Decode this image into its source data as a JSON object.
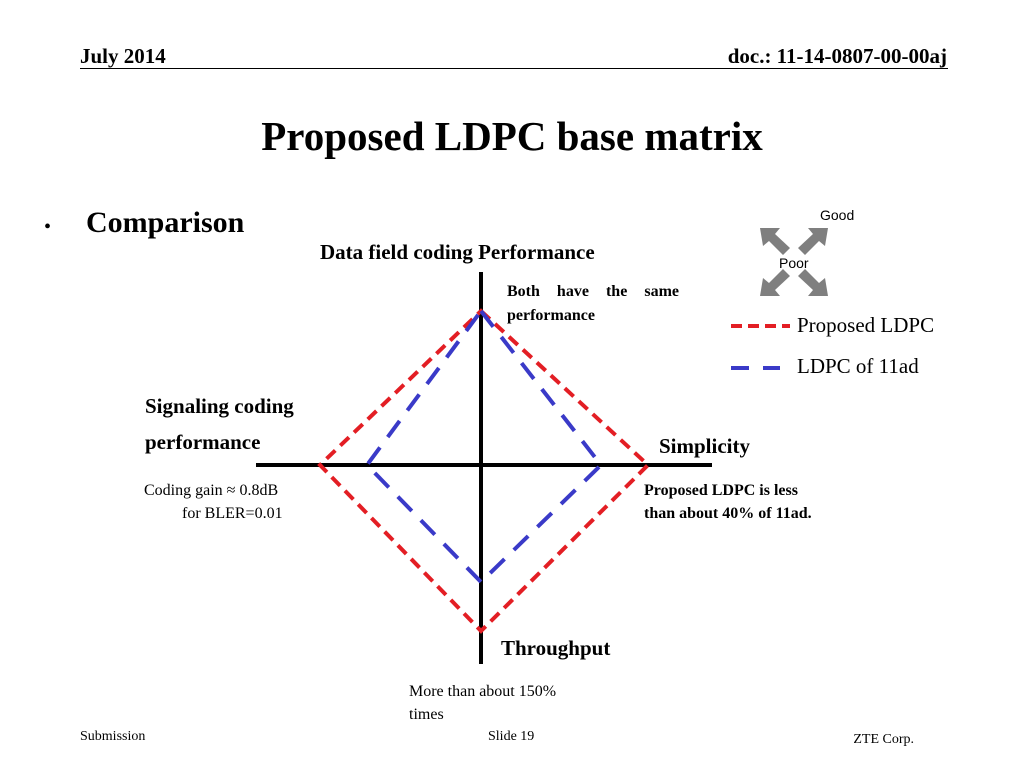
{
  "header": {
    "date": "July 2014",
    "doc_id": "doc.: 11-14-0807-00-00aj"
  },
  "slide": {
    "title": "Proposed LDPC base matrix",
    "bullet": "•",
    "heading": "Comparison"
  },
  "diagram": {
    "axes": {
      "top": "Data field  coding Performance",
      "left_line1": "Signaling coding",
      "left_line2": "performance",
      "right": "Simplicity",
      "bottom": "Throughput"
    },
    "notes": {
      "top": "Both have the same performance",
      "left_line1": "Coding gain  ≈  0.8dB",
      "left_line2": "for BLER=0.01",
      "right_line1": "Proposed LDPC is less",
      "right_line2": "than about 40% of 11ad.",
      "bottom_line1": "More than about 150%",
      "bottom_line2": "times"
    },
    "series": [
      {
        "name": "Proposed LDPC",
        "color": "#e31e24"
      },
      {
        "name": "LDPC of 11ad",
        "color": "#3a3ac8"
      }
    ],
    "indicator": {
      "good": "Good",
      "poor": "Poor",
      "arrow_color": "#7f7f7f",
      "icon": "expand-arrows-icon"
    }
  },
  "footer": {
    "left": "Submission",
    "center": "Slide 19",
    "right": "ZTE Corp."
  }
}
